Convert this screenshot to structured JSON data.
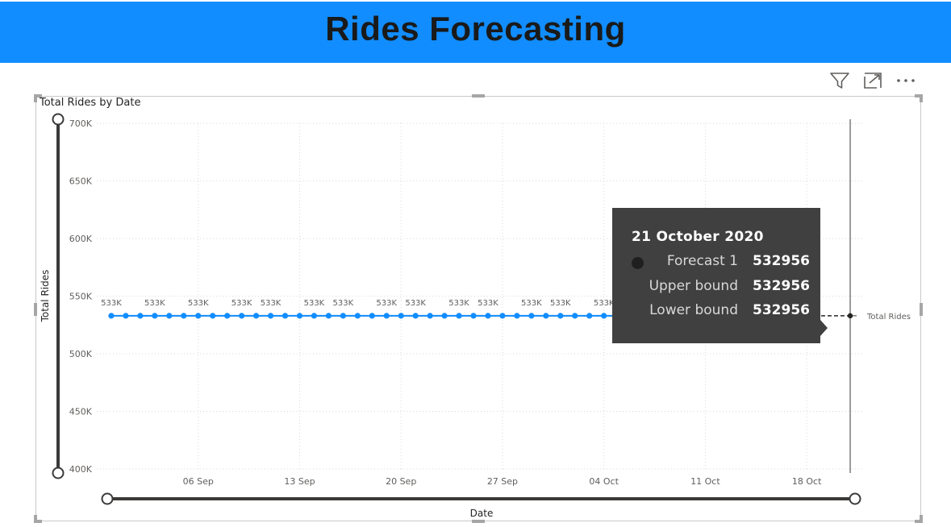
{
  "header": {
    "title": "Rides Forecasting",
    "background": "#118dff"
  },
  "toolbar": {
    "icons": [
      "filter-icon",
      "focus-mode-icon",
      "more-options-icon"
    ]
  },
  "chart_data": {
    "type": "line",
    "title": "Total Rides by Date",
    "xlabel": "Date",
    "ylabel": "Total Rides",
    "ylim": [
      400000,
      700000
    ],
    "y_ticks": [
      400000,
      450000,
      500000,
      550000,
      600000,
      650000,
      700000
    ],
    "y_tick_labels": [
      "400K",
      "450K",
      "500K",
      "550K",
      "600K",
      "650K",
      "700K"
    ],
    "x_tick_labels": [
      "06 Sep",
      "13 Sep",
      "20 Sep",
      "27 Sep",
      "04 Oct",
      "11 Oct",
      "18 Oct"
    ],
    "x_tick_dates": [
      "2020-09-06",
      "2020-09-13",
      "2020-09-20",
      "2020-09-27",
      "2020-10-04",
      "2020-10-11",
      "2020-10-18"
    ],
    "xlim": [
      "2020-08-30",
      "2020-10-22"
    ],
    "grid": true,
    "series": [
      {
        "name": "Total Rides",
        "color": "#118dff",
        "x": [
          "2020-08-31",
          "2020-09-01",
          "2020-09-02",
          "2020-09-03",
          "2020-09-04",
          "2020-09-05",
          "2020-09-06",
          "2020-09-07",
          "2020-09-08",
          "2020-09-09",
          "2020-09-10",
          "2020-09-11",
          "2020-09-12",
          "2020-09-13",
          "2020-09-14",
          "2020-09-15",
          "2020-09-16",
          "2020-09-17",
          "2020-09-18",
          "2020-09-19",
          "2020-09-20",
          "2020-09-21",
          "2020-09-22",
          "2020-09-23",
          "2020-09-24",
          "2020-09-25",
          "2020-09-26",
          "2020-09-27",
          "2020-09-28",
          "2020-09-29",
          "2020-09-30",
          "2020-10-01",
          "2020-10-02",
          "2020-10-03",
          "2020-10-04",
          "2020-10-05",
          "2020-10-06",
          "2020-10-07",
          "2020-10-08",
          "2020-10-09"
        ],
        "values": [
          532956,
          532956,
          532956,
          532956,
          532956,
          532956,
          532956,
          532956,
          532956,
          532956,
          532956,
          532956,
          532956,
          532956,
          532956,
          532956,
          532956,
          532956,
          532956,
          532956,
          532956,
          532956,
          532956,
          532956,
          532956,
          532956,
          532956,
          532956,
          532956,
          532956,
          532956,
          532956,
          532956,
          532956,
          532956,
          532956,
          532956,
          532956,
          532956,
          532956
        ]
      },
      {
        "name": "Forecast 1",
        "color": "#252423",
        "x": [
          "2020-08-31",
          "2020-10-21"
        ],
        "values": [
          532956,
          532956
        ]
      }
    ],
    "data_label_text": "533K",
    "data_label_dates": [
      "2020-08-31",
      "2020-09-03",
      "2020-09-06",
      "2020-09-09",
      "2020-09-11",
      "2020-09-14",
      "2020-09-16",
      "2020-09-19",
      "2020-09-21",
      "2020-09-24",
      "2020-09-26",
      "2020-09-29",
      "2020-10-01",
      "2020-10-04",
      "2020-10-06"
    ],
    "reference_date": "2020-10-21",
    "series_end_label": "Total Rides"
  },
  "tooltip": {
    "date": "21 October 2020",
    "rows": [
      {
        "label": "Forecast 1",
        "value": "532956",
        "marker": true
      },
      {
        "label": "Upper bound",
        "value": "532956",
        "marker": false
      },
      {
        "label": "Lower bound",
        "value": "532956",
        "marker": false
      }
    ]
  }
}
